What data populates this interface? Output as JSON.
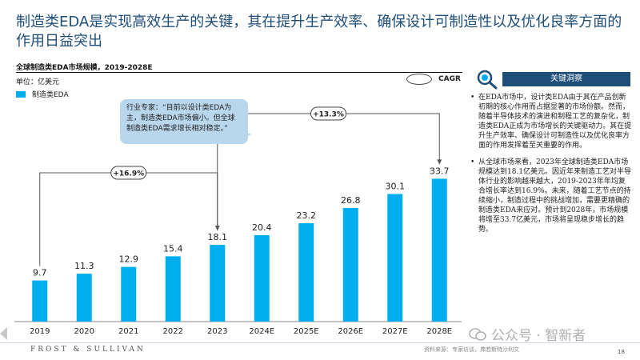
{
  "slide": {
    "title": "制造类EDA是实现高效生产的关键，其在提升生产效率、确保设计可制造性以及优化良率方面的作用日益突出",
    "page_number": "18"
  },
  "chart_header": {
    "title": "全球制造类EDA市场规模，2019-2028E",
    "unit": "单位：亿美元",
    "legend_label": "制造类EDA",
    "cagr_label": "CAGR"
  },
  "callout": {
    "text": "行业专家：“目前以设计类EDA为主，制造类EDA市场偏小。但全球制造类EDA需求增长相对稳定。”"
  },
  "chart_data": {
    "type": "bar",
    "title": "全球制造类EDA市场规模，2019-2028E",
    "ylabel": "单位：亿美元",
    "categories": [
      "2019",
      "2020",
      "2021",
      "2022",
      "2023",
      "2024E",
      "2025E",
      "2026E",
      "2027E",
      "2028E"
    ],
    "series": [
      {
        "name": "制造类EDA",
        "values": [
          9.7,
          11.3,
          12.9,
          15.4,
          18.1,
          20.4,
          23.2,
          26.8,
          30.1,
          33.7
        ]
      }
    ],
    "ylim": [
      0,
      36
    ],
    "bar_color": "#00aeef",
    "cagr_annotations": [
      {
        "label": "+16.9%",
        "from": "2019",
        "to": "2023"
      },
      {
        "label": "+13.3%",
        "from": "2023",
        "to": "2028E"
      }
    ],
    "grid": false
  },
  "panel": {
    "heading": "关键洞察",
    "bullets": [
      "在EDA市场中，设计类EDA由于其在产品创新初期的核心作用而占据显著的市场份额。然而，随着半导体技术的演进和制程工艺的复杂化，制造类EDA正成为市场增长的关键驱动力。其在提升生产效率、确保设计可制造性以及优化良率方面的作用发挥着至关重要的作用。",
      "从全球市场来看，2023年全球制造类EDA市场规模达到18.1亿美元。因近年来制造工艺对半导体行业的影响越来越大，2019-2023年年均复合增长率达到16.9%。未来，随着工艺节点的持续缩小，制造过程中的挑战增加，需要更精确的制造类EDA来应对。预计到2028年，市场规模将增至33.7亿美元，市场将呈现稳步增长的趋势。"
    ]
  },
  "footer": {
    "logo": "FROST & SULLIVAN",
    "source": "资料来源：专家访谈，弗若斯特沙利文"
  },
  "watermark": {
    "text": "公众号 · 智新者"
  }
}
